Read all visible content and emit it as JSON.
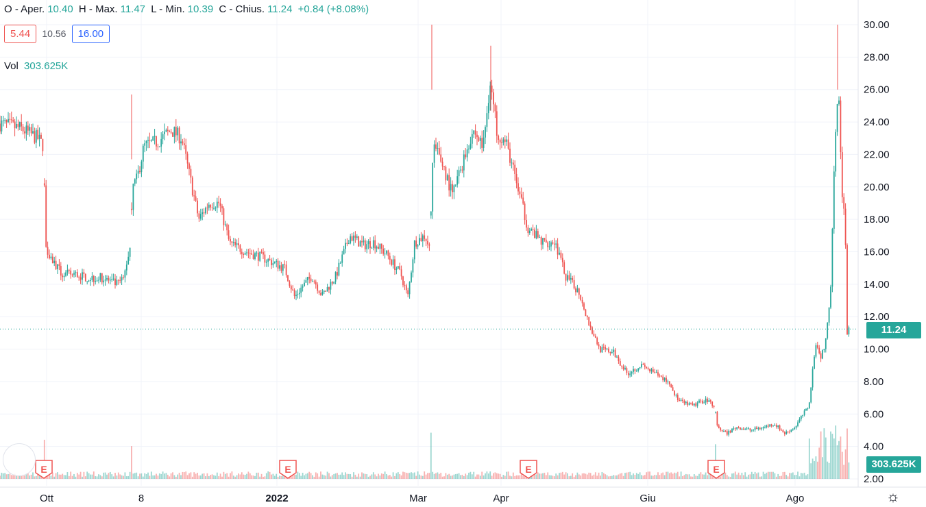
{
  "legend": {
    "open_label": "O - Aper.",
    "open_value": "10.40",
    "high_label": "H - Max.",
    "high_value": "11.47",
    "low_label": "L - Min.",
    "low_value": "10.39",
    "close_label": "C - Chius.",
    "close_value": "11.24",
    "change": "+0.84 (+8.08%)",
    "bid": "5.44",
    "mid": "10.56",
    "ask": "16.00",
    "vol_label": "Vol",
    "vol_value": "303.625K"
  },
  "price_tag": "11.24",
  "volume_tag": "303.625K",
  "colors": {
    "up": "#26a69a",
    "down": "#ef5350",
    "grid": "#f0f3fa",
    "axis_text": "#131722"
  },
  "icons": {
    "settings": "gear-icon",
    "earnings": "earnings-flag-icon"
  },
  "chart_data": {
    "type": "candlestick",
    "y_axis": {
      "min": 2,
      "max": 30,
      "ticks": [
        "2.00",
        "4.00",
        "6.00",
        "8.00",
        "10.00",
        "12.00",
        "14.00",
        "16.00",
        "18.00",
        "20.00",
        "22.00",
        "24.00",
        "26.00",
        "28.00",
        "30.00"
      ],
      "position": "right"
    },
    "x_axis": {
      "labels": [
        "Ott",
        "8",
        "2022",
        "Mar",
        "Apr",
        "Giu",
        "Ago"
      ]
    },
    "last_price": 11.24,
    "earnings_markers": [
      {
        "label": "E",
        "near": "Ott"
      },
      {
        "label": "E",
        "near": "2022"
      },
      {
        "label": "E",
        "near": "Apr"
      },
      {
        "label": "E",
        "near": "Giu"
      }
    ],
    "price_path": [
      {
        "t": 0,
        "p": 23.9
      },
      {
        "t": 30,
        "p": 23.6
      },
      {
        "t": 55,
        "p": 23.0
      },
      {
        "t": 64,
        "p": 22.5
      },
      {
        "t": 66,
        "p": 16.5
      },
      {
        "t": 75,
        "p": 15.6
      },
      {
        "t": 90,
        "p": 14.6
      },
      {
        "t": 110,
        "p": 14.6
      },
      {
        "t": 130,
        "p": 14.4
      },
      {
        "t": 150,
        "p": 14.4
      },
      {
        "t": 170,
        "p": 14.0
      },
      {
        "t": 180,
        "p": 14.3
      },
      {
        "t": 190,
        "p": 16.4
      },
      {
        "t": 193,
        "p": 20.0
      },
      {
        "t": 200,
        "p": 20.5
      },
      {
        "t": 210,
        "p": 22.5
      },
      {
        "t": 230,
        "p": 22.8
      },
      {
        "t": 250,
        "p": 23.5
      },
      {
        "t": 265,
        "p": 23.0
      },
      {
        "t": 275,
        "p": 21.0
      },
      {
        "t": 290,
        "p": 18.0
      },
      {
        "t": 305,
        "p": 19.0
      },
      {
        "t": 320,
        "p": 19.0
      },
      {
        "t": 335,
        "p": 16.5
      },
      {
        "t": 360,
        "p": 16.0
      },
      {
        "t": 380,
        "p": 15.7
      },
      {
        "t": 400,
        "p": 15.3
      },
      {
        "t": 415,
        "p": 15.0
      },
      {
        "t": 430,
        "p": 13.2
      },
      {
        "t": 440,
        "p": 13.8
      },
      {
        "t": 455,
        "p": 14.5
      },
      {
        "t": 470,
        "p": 13.3
      },
      {
        "t": 490,
        "p": 14.5
      },
      {
        "t": 510,
        "p": 17.0
      },
      {
        "t": 530,
        "p": 16.4
      },
      {
        "t": 545,
        "p": 16.6
      },
      {
        "t": 565,
        "p": 15.8
      },
      {
        "t": 585,
        "p": 14.6
      },
      {
        "t": 595,
        "p": 13.2
      },
      {
        "t": 605,
        "p": 16.6
      },
      {
        "t": 620,
        "p": 17.0
      },
      {
        "t": 627,
        "p": 16.2
      },
      {
        "t": 632,
        "p": 22.5
      },
      {
        "t": 645,
        "p": 21.5
      },
      {
        "t": 660,
        "p": 19.5
      },
      {
        "t": 675,
        "p": 21.5
      },
      {
        "t": 690,
        "p": 23.5
      },
      {
        "t": 705,
        "p": 22.5
      },
      {
        "t": 715,
        "p": 26.5
      },
      {
        "t": 725,
        "p": 23.5
      },
      {
        "t": 740,
        "p": 22.5
      },
      {
        "t": 755,
        "p": 20.0
      },
      {
        "t": 770,
        "p": 17.5
      },
      {
        "t": 790,
        "p": 16.6
      },
      {
        "t": 810,
        "p": 16.6
      },
      {
        "t": 825,
        "p": 14.5
      },
      {
        "t": 845,
        "p": 13.5
      },
      {
        "t": 860,
        "p": 11.5
      },
      {
        "t": 875,
        "p": 10.0
      },
      {
        "t": 895,
        "p": 9.8
      },
      {
        "t": 915,
        "p": 8.5
      },
      {
        "t": 935,
        "p": 9.0
      },
      {
        "t": 955,
        "p": 8.5
      },
      {
        "t": 975,
        "p": 8.0
      },
      {
        "t": 990,
        "p": 6.8
      },
      {
        "t": 1010,
        "p": 6.5
      },
      {
        "t": 1030,
        "p": 6.9
      },
      {
        "t": 1043,
        "p": 6.5
      },
      {
        "t": 1046,
        "p": 5.2
      },
      {
        "t": 1060,
        "p": 4.8
      },
      {
        "t": 1075,
        "p": 5.2
      },
      {
        "t": 1095,
        "p": 5.0
      },
      {
        "t": 1115,
        "p": 5.2
      },
      {
        "t": 1130,
        "p": 5.4
      },
      {
        "t": 1145,
        "p": 4.8
      },
      {
        "t": 1160,
        "p": 5.2
      },
      {
        "t": 1172,
        "p": 6.0
      },
      {
        "t": 1180,
        "p": 6.5
      },
      {
        "t": 1190,
        "p": 10.5
      },
      {
        "t": 1197,
        "p": 9.5
      },
      {
        "t": 1205,
        "p": 10.5
      },
      {
        "t": 1212,
        "p": 14.0
      },
      {
        "t": 1218,
        "p": 23.0
      },
      {
        "t": 1223,
        "p": 26.5
      },
      {
        "t": 1228,
        "p": 20.0
      },
      {
        "t": 1233,
        "p": 17.5
      },
      {
        "t": 1236,
        "p": 11.0
      },
      {
        "t": 1240,
        "p": 11.24
      }
    ],
    "gaps_after_t": [
      64,
      190,
      627,
      1043
    ]
  }
}
